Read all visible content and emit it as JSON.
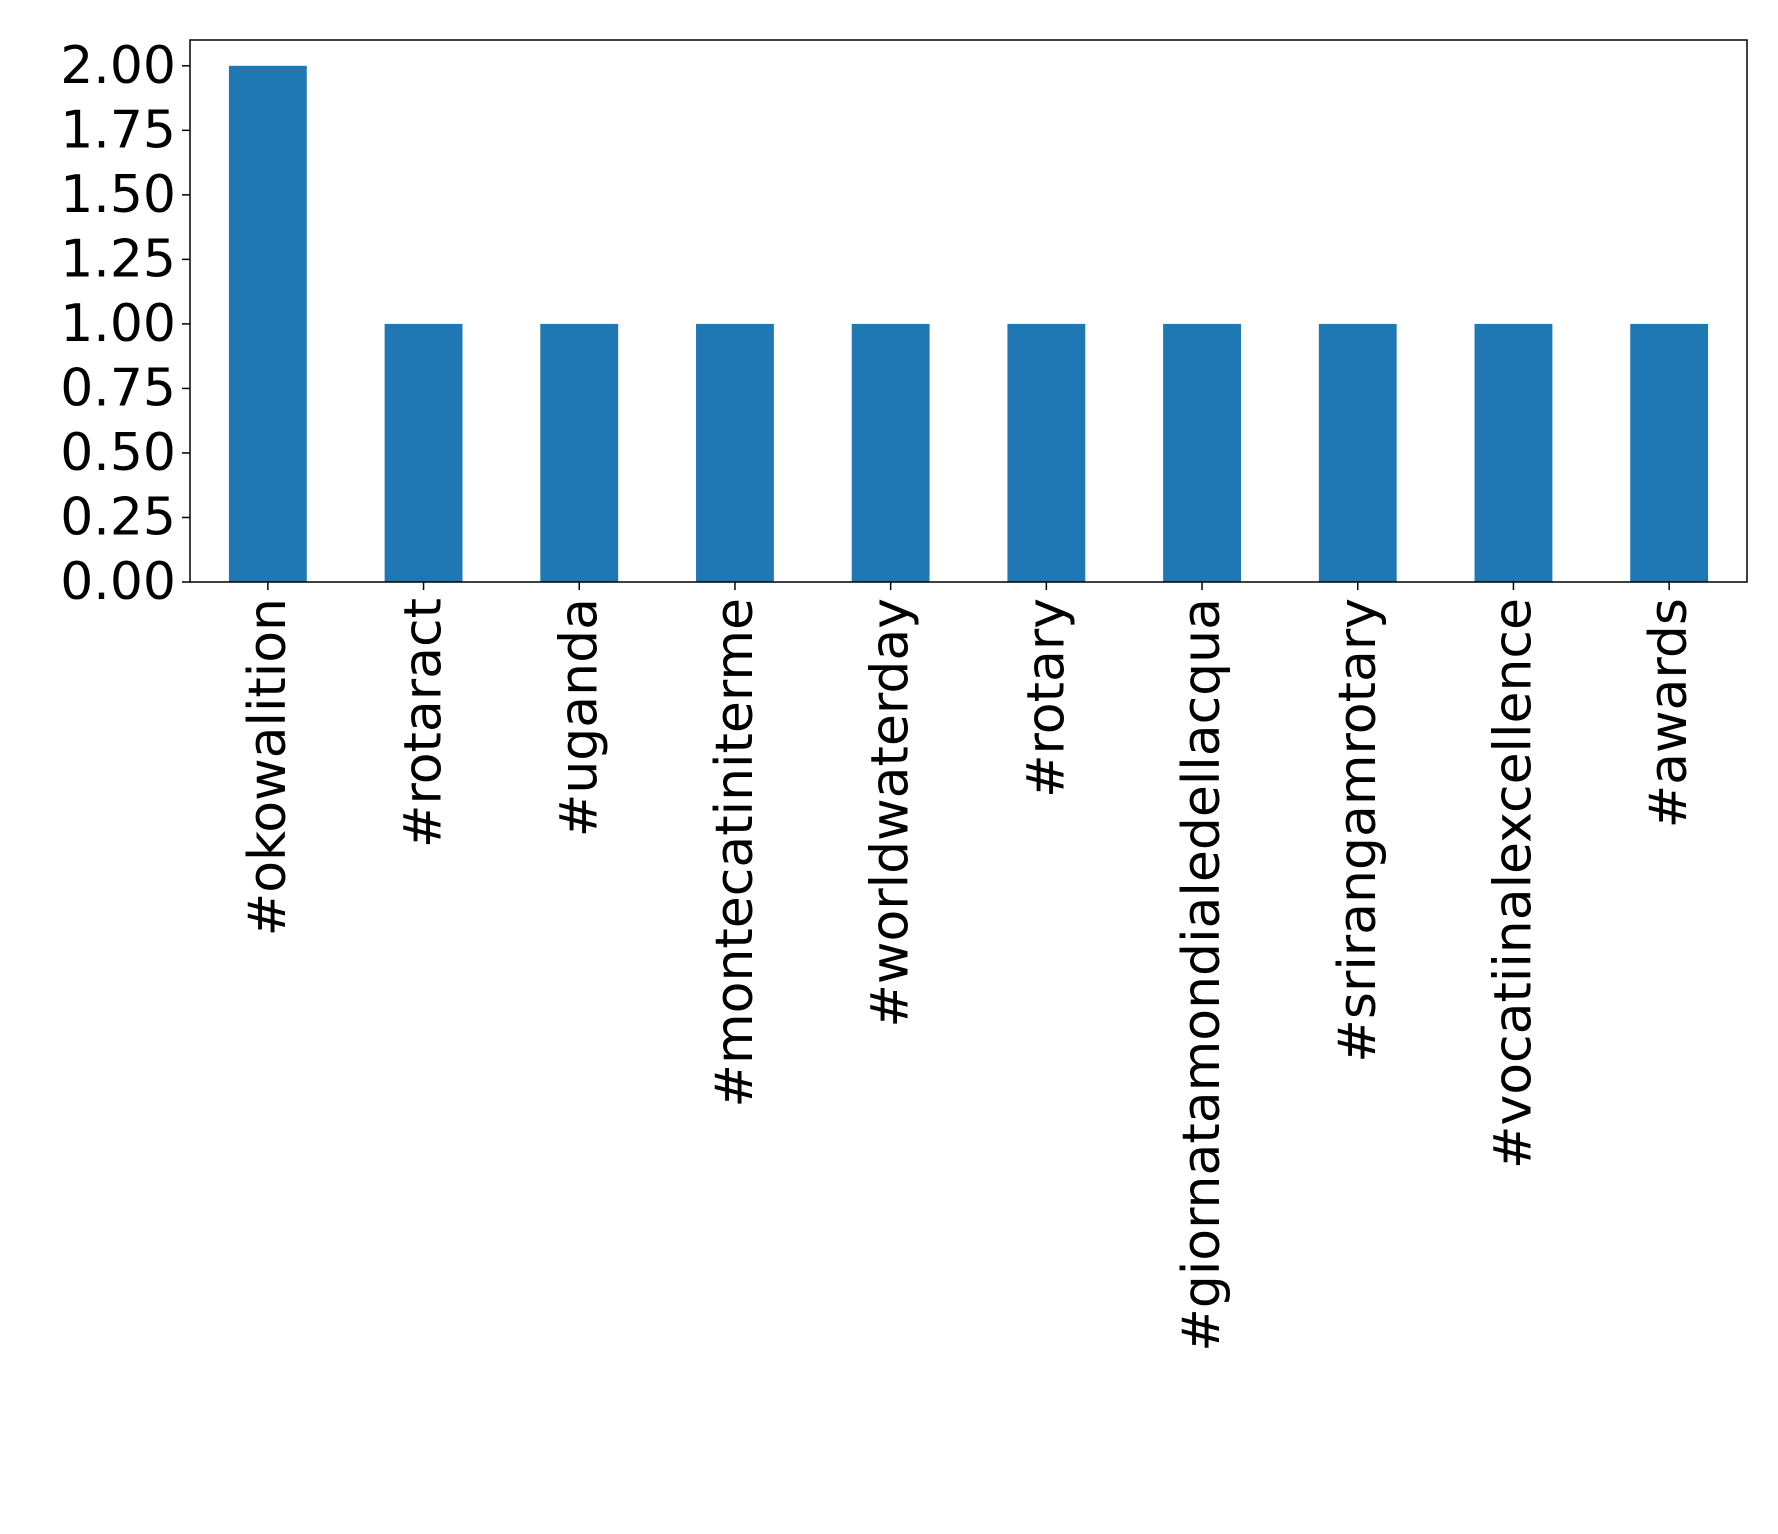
{
  "chart_data": {
    "type": "bar",
    "title": "",
    "xlabel": "",
    "ylabel": "",
    "categories": [
      "#okowalition",
      "#rotaract",
      "#uganda",
      "#montecatiniterme",
      "#worldwaterday",
      "#rotary",
      "#giornatamondialedellacqua",
      "#srirangamrotary",
      "#vocatiinalexcellence",
      "#awards"
    ],
    "values": [
      2,
      1,
      1,
      1,
      1,
      1,
      1,
      1,
      1,
      1
    ],
    "ylim": [
      0,
      2.1
    ],
    "yticks": [
      "0.00",
      "0.25",
      "0.50",
      "0.75",
      "1.00",
      "1.25",
      "1.50",
      "1.75",
      "2.00"
    ],
    "grid": false,
    "legend": "none",
    "bar_color": "#1f77b4"
  }
}
